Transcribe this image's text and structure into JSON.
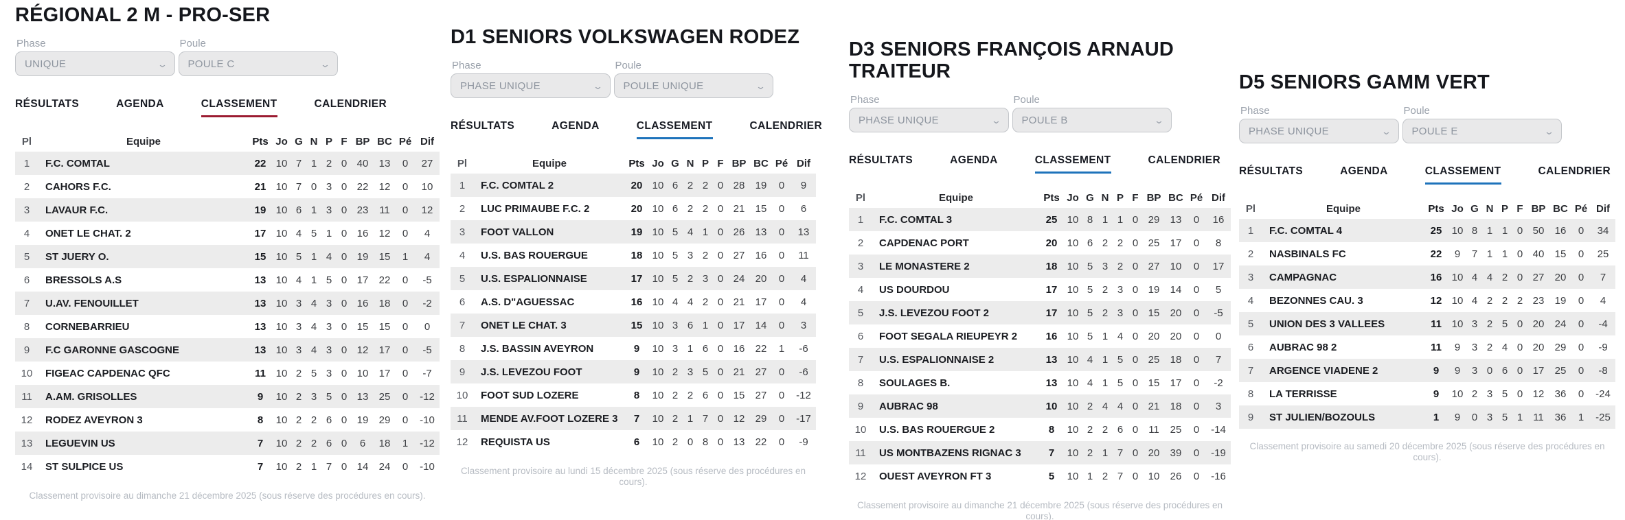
{
  "panels": [
    {
      "title": "RÉGIONAL 2 M - PRO-SER",
      "phase": {
        "label": "Phase",
        "value": "UNIQUE"
      },
      "poule": {
        "label": "Poule",
        "value": "POULE C"
      },
      "tabs": [
        "RÉSULTATS",
        "AGENDA",
        "CLASSEMENT",
        "CALENDRIER"
      ],
      "active_tab": "CLASSEMENT",
      "accent_color": "#9b1b31",
      "columns": [
        "Pl",
        "Equipe",
        "Pts",
        "Jo",
        "G",
        "N",
        "P",
        "F",
        "BP",
        "BC",
        "Pé",
        "Dif"
      ],
      "rows": [
        [
          1,
          "F.C. COMTAL",
          22,
          10,
          7,
          1,
          2,
          0,
          40,
          13,
          0,
          27
        ],
        [
          2,
          "CAHORS F.C.",
          21,
          10,
          7,
          0,
          3,
          0,
          22,
          12,
          0,
          10
        ],
        [
          3,
          "LAVAUR F.C.",
          19,
          10,
          6,
          1,
          3,
          0,
          23,
          11,
          0,
          12
        ],
        [
          4,
          "ONET LE CHAT. 2",
          17,
          10,
          4,
          5,
          1,
          0,
          16,
          12,
          0,
          4
        ],
        [
          5,
          "ST JUERY O.",
          15,
          10,
          5,
          1,
          4,
          0,
          19,
          15,
          1,
          4
        ],
        [
          6,
          "BRESSOLS A.S",
          13,
          10,
          4,
          1,
          5,
          0,
          17,
          22,
          0,
          -5
        ],
        [
          7,
          "U.AV. FENOUILLET",
          13,
          10,
          3,
          4,
          3,
          0,
          16,
          18,
          0,
          -2
        ],
        [
          8,
          "CORNEBARRIEU",
          13,
          10,
          3,
          4,
          3,
          0,
          15,
          15,
          0,
          0
        ],
        [
          9,
          "F.C GARONNE GASCOGNE",
          13,
          10,
          3,
          4,
          3,
          0,
          12,
          17,
          0,
          -5
        ],
        [
          10,
          "FIGEAC CAPDENAC QFC",
          11,
          10,
          2,
          5,
          3,
          0,
          10,
          17,
          0,
          -7
        ],
        [
          11,
          "A.AM. GRISOLLES",
          9,
          10,
          2,
          3,
          5,
          0,
          13,
          25,
          0,
          -12
        ],
        [
          12,
          "RODEZ AVEYRON 3",
          8,
          10,
          2,
          2,
          6,
          0,
          19,
          29,
          0,
          -10
        ],
        [
          13,
          "LEGUEVIN US",
          7,
          10,
          2,
          2,
          6,
          0,
          6,
          18,
          1,
          -12
        ],
        [
          14,
          "ST SULPICE US",
          7,
          10,
          2,
          1,
          7,
          0,
          14,
          24,
          0,
          -10
        ]
      ],
      "footer": "Classement provisoire au dimanche 21 décembre 2025 (sous réserve des procédures en cours)."
    },
    {
      "title": "D1 SENIORS VOLKSWAGEN RODEZ",
      "phase": {
        "label": "Phase",
        "value": "PHASE UNIQUE"
      },
      "poule": {
        "label": "Poule",
        "value": "POULE UNIQUE"
      },
      "tabs": [
        "RÉSULTATS",
        "AGENDA",
        "CLASSEMENT",
        "CALENDRIER"
      ],
      "active_tab": "CLASSEMENT",
      "accent_color": "#1e73bb",
      "columns": [
        "Pl",
        "Equipe",
        "Pts",
        "Jo",
        "G",
        "N",
        "P",
        "F",
        "BP",
        "BC",
        "Pé",
        "Dif"
      ],
      "rows": [
        [
          1,
          "F.C. COMTAL 2",
          20,
          10,
          6,
          2,
          2,
          0,
          28,
          19,
          0,
          9
        ],
        [
          2,
          "LUC PRIMAUBE F.C. 2",
          20,
          10,
          6,
          2,
          2,
          0,
          21,
          15,
          0,
          6
        ],
        [
          3,
          "FOOT VALLON",
          19,
          10,
          5,
          4,
          1,
          0,
          26,
          13,
          0,
          13
        ],
        [
          4,
          "U.S. BAS ROUERGUE",
          18,
          10,
          5,
          3,
          2,
          0,
          27,
          16,
          0,
          11
        ],
        [
          5,
          "U.S. ESPALIONNAISE",
          17,
          10,
          5,
          2,
          3,
          0,
          24,
          20,
          0,
          4
        ],
        [
          6,
          "A.S. D\"AGUESSAC",
          16,
          10,
          4,
          4,
          2,
          0,
          21,
          17,
          0,
          4
        ],
        [
          7,
          "ONET LE CHAT. 3",
          15,
          10,
          3,
          6,
          1,
          0,
          17,
          14,
          0,
          3
        ],
        [
          8,
          "J.S. BASSIN AVEYRON",
          9,
          10,
          3,
          1,
          6,
          0,
          16,
          22,
          1,
          -6
        ],
        [
          9,
          "J.S. LEVEZOU FOOT",
          9,
          10,
          2,
          3,
          5,
          0,
          21,
          27,
          0,
          -6
        ],
        [
          10,
          "FOOT SUD LOZERE",
          8,
          10,
          2,
          2,
          6,
          0,
          15,
          27,
          0,
          -12
        ],
        [
          11,
          "MENDE AV.FOOT LOZERE 3",
          7,
          10,
          2,
          1,
          7,
          0,
          12,
          29,
          0,
          -17
        ],
        [
          12,
          "REQUISTA US",
          6,
          10,
          2,
          0,
          8,
          0,
          13,
          22,
          0,
          -9
        ]
      ],
      "footer": "Classement provisoire au lundi 15 décembre 2025 (sous réserve des procédures en cours)."
    },
    {
      "title": "D3 SENIORS FRANÇOIS ARNAUD\nTRAITEUR",
      "phase": {
        "label": "Phase",
        "value": "PHASE UNIQUE"
      },
      "poule": {
        "label": "Poule",
        "value": "POULE B"
      },
      "tabs": [
        "RÉSULTATS",
        "AGENDA",
        "CLASSEMENT",
        "CALENDRIER"
      ],
      "active_tab": "CLASSEMENT",
      "accent_color": "#1e73bb",
      "columns": [
        "Pl",
        "Equipe",
        "Pts",
        "Jo",
        "G",
        "N",
        "P",
        "F",
        "BP",
        "BC",
        "Pé",
        "Dif"
      ],
      "rows": [
        [
          1,
          "F.C. COMTAL 3",
          25,
          10,
          8,
          1,
          1,
          0,
          29,
          13,
          0,
          16
        ],
        [
          2,
          "CAPDENAC PORT",
          20,
          10,
          6,
          2,
          2,
          0,
          25,
          17,
          0,
          8
        ],
        [
          3,
          "LE MONASTERE 2",
          18,
          10,
          5,
          3,
          2,
          0,
          27,
          10,
          0,
          17
        ],
        [
          4,
          "US DOURDOU",
          17,
          10,
          5,
          2,
          3,
          0,
          19,
          14,
          0,
          5
        ],
        [
          5,
          "J.S. LEVEZOU FOOT 2",
          17,
          10,
          5,
          2,
          3,
          0,
          15,
          20,
          0,
          -5
        ],
        [
          6,
          "FOOT SEGALA RIEUPEYR 2",
          16,
          10,
          5,
          1,
          4,
          0,
          20,
          20,
          0,
          0
        ],
        [
          7,
          "U.S. ESPALIONNAISE 2",
          13,
          10,
          4,
          1,
          5,
          0,
          25,
          18,
          0,
          7
        ],
        [
          8,
          "SOULAGES B.",
          13,
          10,
          4,
          1,
          5,
          0,
          15,
          17,
          0,
          -2
        ],
        [
          9,
          "AUBRAC 98",
          10,
          10,
          2,
          4,
          4,
          0,
          21,
          18,
          0,
          3
        ],
        [
          10,
          "U.S. BAS ROUERGUE 2",
          8,
          10,
          2,
          2,
          6,
          0,
          11,
          25,
          0,
          -14
        ],
        [
          11,
          "US MONTBAZENS RIGNAC 3",
          7,
          10,
          2,
          1,
          7,
          0,
          20,
          39,
          0,
          -19
        ],
        [
          12,
          "OUEST AVEYRON FT 3",
          5,
          10,
          1,
          2,
          7,
          0,
          10,
          26,
          0,
          -16
        ]
      ],
      "footer": "Classement provisoire au dimanche 21 décembre 2025 (sous réserve des procédures en cours)."
    },
    {
      "title": "D5 SENIORS GAMM VERT",
      "phase": {
        "label": "Phase",
        "value": "PHASE UNIQUE"
      },
      "poule": {
        "label": "Poule",
        "value": "POULE E"
      },
      "tabs": [
        "RÉSULTATS",
        "AGENDA",
        "CLASSEMENT",
        "CALENDRIER"
      ],
      "active_tab": "CLASSEMENT",
      "accent_color": "#1e73bb",
      "columns": [
        "Pl",
        "Equipe",
        "Pts",
        "Jo",
        "G",
        "N",
        "P",
        "F",
        "BP",
        "BC",
        "Pé",
        "Dif"
      ],
      "rows": [
        [
          1,
          "F.C. COMTAL 4",
          25,
          10,
          8,
          1,
          1,
          0,
          50,
          16,
          0,
          34
        ],
        [
          2,
          "NASBINALS FC",
          22,
          9,
          7,
          1,
          1,
          0,
          40,
          15,
          0,
          25
        ],
        [
          3,
          "CAMPAGNAC",
          16,
          10,
          4,
          4,
          2,
          0,
          27,
          20,
          0,
          7
        ],
        [
          4,
          "BEZONNES CAU. 3",
          12,
          10,
          4,
          2,
          2,
          2,
          23,
          19,
          0,
          4
        ],
        [
          5,
          "UNION DES 3 VALLEES",
          11,
          10,
          3,
          2,
          5,
          0,
          20,
          24,
          0,
          -4
        ],
        [
          6,
          "AUBRAC 98 2",
          11,
          9,
          3,
          2,
          4,
          0,
          20,
          29,
          0,
          -9
        ],
        [
          7,
          "ARGENCE VIADENE 2",
          9,
          9,
          3,
          0,
          6,
          0,
          17,
          25,
          0,
          -8
        ],
        [
          8,
          "LA TERRISSE",
          9,
          10,
          2,
          3,
          5,
          0,
          12,
          36,
          0,
          -24
        ],
        [
          9,
          "ST JULIEN/BOZOULS",
          1,
          9,
          0,
          3,
          5,
          1,
          11,
          36,
          1,
          -25
        ]
      ],
      "footer": "Classement provisoire au samedi 20 décembre 2025 (sous réserve des procédures en cours)."
    }
  ],
  "icons": {
    "select_chevron": "chevron-down-icon"
  }
}
